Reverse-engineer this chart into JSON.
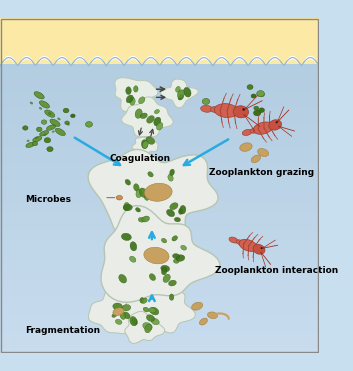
{
  "fig_width": 3.53,
  "fig_height": 3.71,
  "dpi": 100,
  "label_coagulation": "Coagulation",
  "label_microbes": "Microbes",
  "label_zooplankton_grazing": "Zooplankton grazing",
  "label_zooplankton_interaction": "Zooplankton interaction",
  "label_fragmentation": "Fragmentation",
  "label_fontsize": 6.5,
  "cyan_arrow": "#29abe2",
  "dark_arrow": "#555555",
  "sky_color": "#fce9a5",
  "ocean_top_color": "#c8dff0",
  "ocean_bot_color": "#a8c8e0",
  "wave_line_color": "#8ab5d5",
  "aggregate_fc": "#e8ede5",
  "aggregate_ec": "#b8c8b5",
  "phyto_colors": [
    "#4a8020",
    "#5a9030",
    "#6aa040",
    "#3a7018"
  ],
  "fecal_color": "#c8a060",
  "fecal_ec": "#a08040",
  "copepod_body": "#d06050",
  "copepod_ec": "#904030",
  "border_color": "#888888"
}
